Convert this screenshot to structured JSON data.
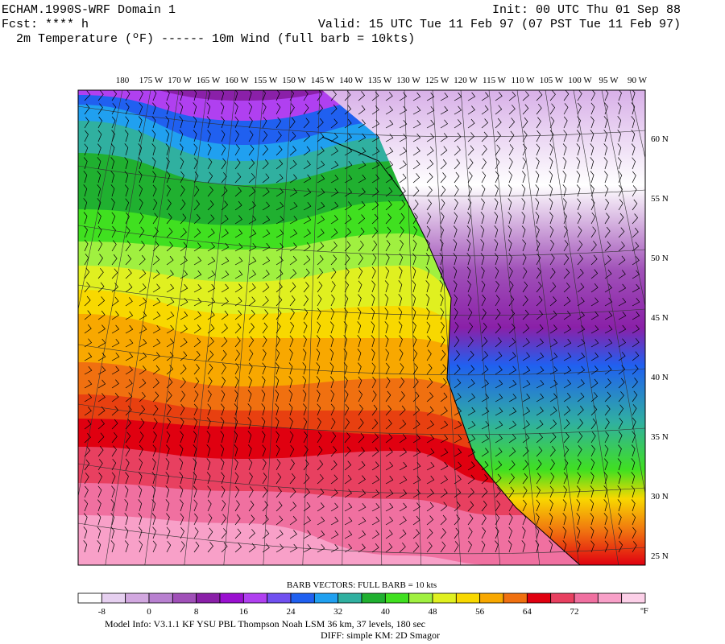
{
  "header": {
    "title": "ECHAM.1990S-WRF Domain 1",
    "init": "Init: 00 UTC Thu 01 Sep 88",
    "fcst": "Fcst: **** h",
    "valid": "Valid: 15 UTC Tue 11 Feb 97 (07 PST Tue 11 Feb 97)",
    "fields": "2m Temperature (ºF) ------ 10m Wind (full barb = 10kts)"
  },
  "map": {
    "lon_labels": [
      "180",
      "175 W",
      "170 W",
      "165 W",
      "160 W",
      "155 W",
      "150 W",
      "145 W",
      "140 W",
      "135 W",
      "130 W",
      "125 W",
      "120 W",
      "115 W",
      "110 W",
      "105 W",
      "100 W",
      "95 W",
      "90 W"
    ],
    "lat_labels": [
      "60 N",
      "55 N",
      "50 N",
      "45 N",
      "40 N",
      "35 N",
      "30 N",
      "25 N"
    ]
  },
  "legend": {
    "title": "BARB VECTORS:  FULL BARB = 10 kts",
    "ticks": [
      "-8",
      "0",
      "8",
      "16",
      "24",
      "32",
      "40",
      "48",
      "56",
      "64",
      "72"
    ],
    "unit": "ºF"
  },
  "footer": {
    "line1": "Model Info: V3.1.1    KF     YSU PBL   Thompson     Noah LSM   36 km,    37 levels,   180 sec",
    "line2": "DIFF: simple KM: 2D Smagor"
  }
}
